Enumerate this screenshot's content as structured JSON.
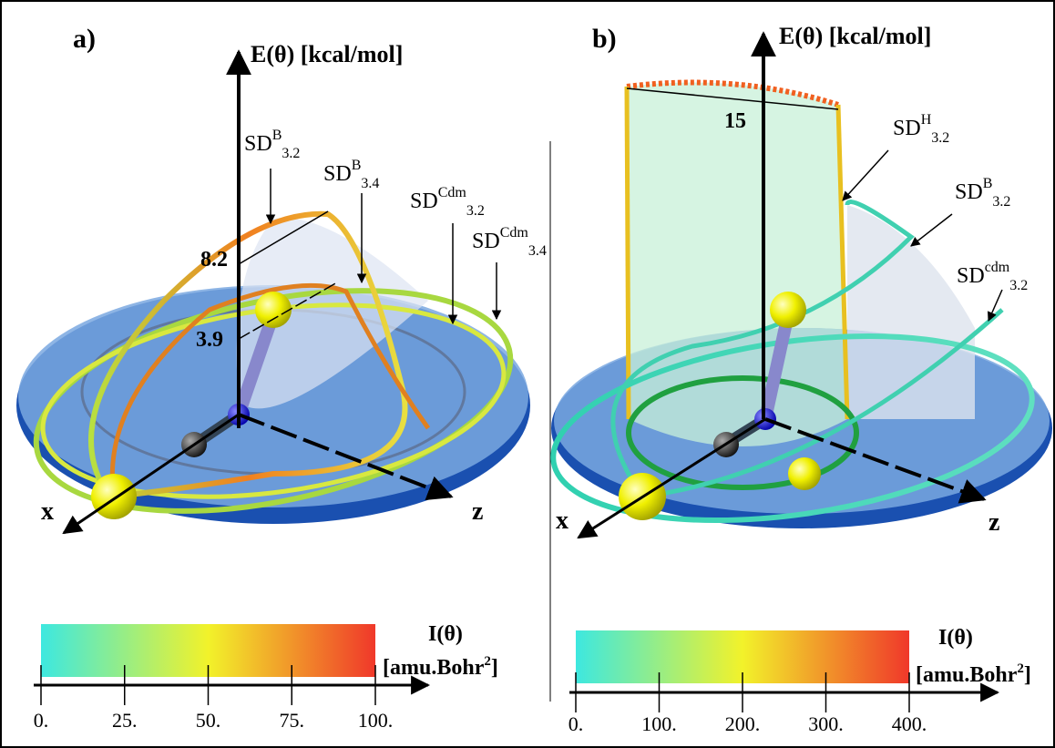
{
  "panels": [
    {
      "label": "a)",
      "energy_axis": "E(θ) [kcal/mol]",
      "x_axis": "x",
      "z_axis": "z",
      "curves": [
        {
          "base": "SD",
          "sup": "B",
          "sub": "3.2"
        },
        {
          "base": "SD",
          "sup": "B",
          "sub": "3.4"
        },
        {
          "base": "SD",
          "sup": "Cdm",
          "sub": "3.2"
        },
        {
          "base": "SD",
          "sup": "Cdm",
          "sub": "3.4"
        }
      ],
      "levels": [
        8.2,
        3.9
      ],
      "colorbar": {
        "title": "I(θ)",
        "unit": "[amu.Bohr",
        "unit_sup": "2",
        "unit_end": "]",
        "range": [
          0,
          100
        ],
        "ticks": [
          {
            "value": 0,
            "label": "0."
          },
          {
            "value": 25,
            "label": "25."
          },
          {
            "value": 50,
            "label": "50."
          },
          {
            "value": 75,
            "label": "75."
          },
          {
            "value": 100,
            "label": "100."
          }
        ]
      }
    },
    {
      "label": "b)",
      "energy_axis": "E(θ) [kcal/mol]",
      "x_axis": "x",
      "z_axis": "z",
      "curves": [
        {
          "base": "SD",
          "sup": "H",
          "sub": "3.2"
        },
        {
          "base": "SD",
          "sup": "B",
          "sub": "3.2"
        },
        {
          "base": "SD",
          "sup": "cdm",
          "sub": "3.2"
        }
      ],
      "levels": [
        15
      ],
      "colorbar": {
        "title": "I(θ)",
        "unit": "[amu.Bohr",
        "unit_sup": "2",
        "unit_end": "]",
        "range": [
          0,
          400
        ],
        "ticks": [
          {
            "value": 0,
            "label": "0."
          },
          {
            "value": 100,
            "label": "100."
          },
          {
            "value": 200,
            "label": "200."
          },
          {
            "value": 300,
            "label": "300."
          },
          {
            "value": 400,
            "label": "400."
          }
        ]
      }
    }
  ]
}
